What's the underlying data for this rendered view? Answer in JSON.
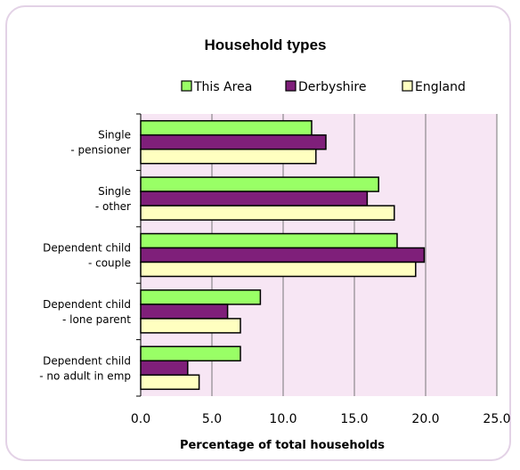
{
  "chart_data": {
    "type": "bar",
    "orientation": "horizontal",
    "title": "Household types",
    "xlabel": "Percentage of total households",
    "ylabel": "",
    "xlim": [
      0,
      25
    ],
    "xticks": [
      "0.0",
      "5.0",
      "10.0",
      "15.0",
      "20.0",
      "25.0"
    ],
    "grid": "vertical lines",
    "legend_position": "top",
    "categories": [
      [
        "Single",
        "- pensioner"
      ],
      [
        "Single",
        "- other"
      ],
      [
        "Dependent child",
        "- couple"
      ],
      [
        "Dependent child",
        "- lone parent"
      ],
      [
        "Dependent child",
        "- no adult in emp"
      ]
    ],
    "series": [
      {
        "name": "This Area",
        "color": "#99ff66",
        "values": [
          12.0,
          16.7,
          18.0,
          8.4,
          7.0
        ]
      },
      {
        "name": "Derbyshire",
        "color": "#7f1f7a",
        "values": [
          13.0,
          15.9,
          19.9,
          6.1,
          3.3
        ]
      },
      {
        "name": "England",
        "color": "#ffffc0",
        "values": [
          12.3,
          17.8,
          19.3,
          7.0,
          4.1
        ]
      }
    ],
    "plot_background": "#f7e6f4"
  }
}
